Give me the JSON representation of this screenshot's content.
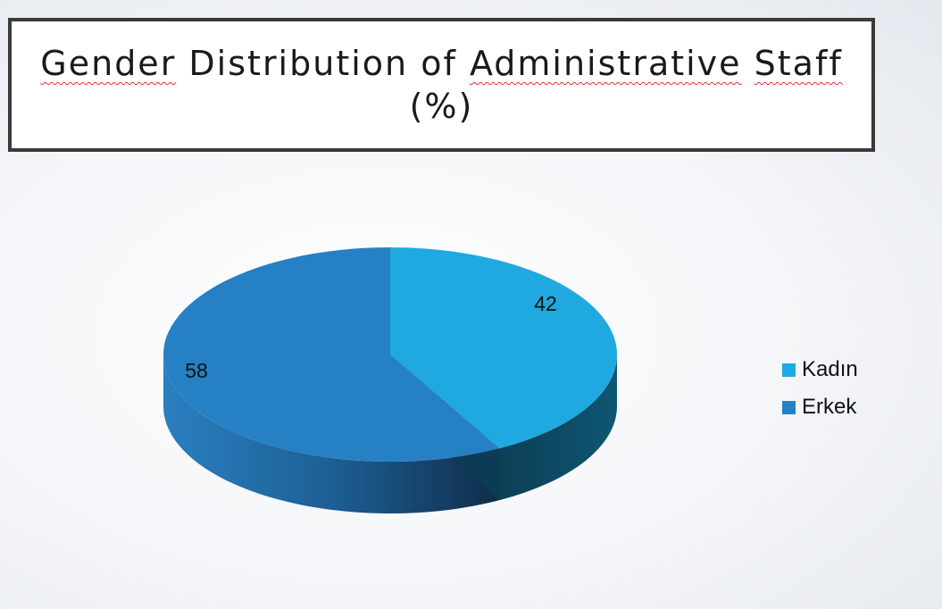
{
  "title_line1": [
    "Gender",
    "Distribution",
    "of",
    "Administrative",
    "Staff"
  ],
  "title_line2": "(%)",
  "chart_data": {
    "type": "pie",
    "title": "Gender Distribution of Administrative Staff (%)",
    "categories": [
      "Kadın",
      "Erkek"
    ],
    "values": [
      42,
      58
    ],
    "data_labels": [
      "42",
      "58"
    ],
    "colors": [
      "#1fa9e0",
      "#2580c4"
    ],
    "legend_position": "right",
    "style": "3d"
  }
}
